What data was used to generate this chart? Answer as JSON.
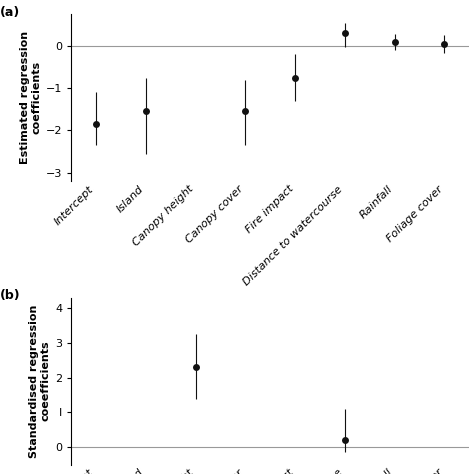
{
  "panel_a": {
    "categories": [
      "Intercept",
      "Island",
      "Canopy height",
      "Canopy cover",
      "Fire impact",
      "Distance to watercourse",
      "Rainfall",
      "Foliage cover"
    ],
    "values": [
      -1.85,
      -1.55,
      null,
      -1.55,
      -0.75,
      0.3,
      0.1,
      0.05
    ],
    "ci_low": [
      -2.35,
      -2.55,
      null,
      -2.35,
      -1.3,
      -0.02,
      -0.1,
      -0.18
    ],
    "ci_high": [
      -1.1,
      -0.75,
      null,
      -0.8,
      -0.2,
      0.55,
      0.28,
      0.25
    ],
    "ylabel": "Estimated regression\ncoefficients",
    "ylim": [
      -3.2,
      0.75
    ],
    "yticks": [
      0,
      -1,
      -2,
      -3
    ],
    "hline": 0,
    "panel_label": "(a)"
  },
  "panel_b": {
    "categories": [
      "Intercept",
      "Island",
      "Canopy height",
      "Canopy cover",
      "Fire impact",
      "Distance to watercourse",
      "Rainfall",
      "Foliage cover"
    ],
    "values": [
      null,
      null,
      2.3,
      null,
      null,
      0.22,
      null,
      null
    ],
    "ci_low": [
      null,
      null,
      1.4,
      null,
      null,
      -0.15,
      null,
      null
    ],
    "ci_high": [
      null,
      null,
      3.25,
      null,
      null,
      1.1,
      null,
      null
    ],
    "ylabel": "Standardised regression\ncoeefficients",
    "ylim": [
      -0.5,
      4.3
    ],
    "yticks": [
      0,
      1,
      2,
      3,
      4
    ],
    "ytick_labels": [
      "0",
      "I",
      "2",
      "3",
      "4"
    ],
    "hline": 0,
    "panel_label": "(b)"
  },
  "dot_color": "#111111",
  "line_color": "#111111",
  "hline_color": "#999999",
  "bg_color": "#ffffff",
  "font_size": 8,
  "label_fontsize": 8
}
